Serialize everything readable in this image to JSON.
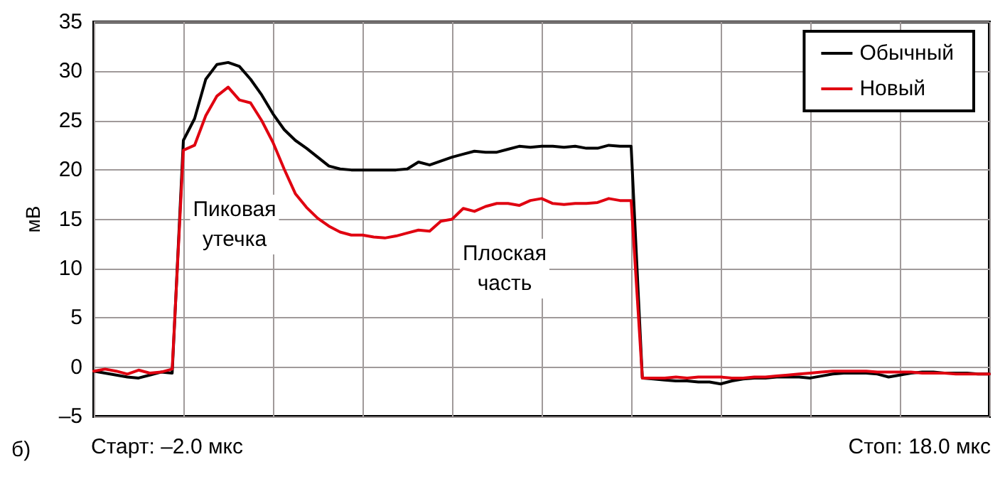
{
  "chart_data": {
    "type": "line",
    "ylabel": "мВ",
    "categories": [
      null,
      null,
      null,
      null,
      null,
      null,
      null,
      null,
      null,
      null,
      null,
      null,
      null,
      null,
      null,
      null,
      null,
      null,
      null,
      null,
      null,
      null,
      null,
      null,
      null,
      null,
      null,
      null,
      null,
      null,
      null,
      null,
      null,
      null,
      null,
      null,
      null,
      null,
      null,
      null,
      null,
      null,
      null,
      null,
      null,
      null,
      null,
      null,
      null,
      null,
      null,
      null,
      null,
      null,
      null,
      null,
      null,
      null,
      null,
      null,
      null,
      null,
      null,
      null,
      null,
      null,
      null,
      null,
      null,
      null,
      null,
      null,
      null,
      null,
      null,
      null,
      null,
      null,
      null,
      null,
      null
    ],
    "ylim": [
      -5,
      35
    ],
    "yticks": [
      {
        "value": -5,
        "label": "–5"
      },
      0,
      5,
      10,
      15,
      20,
      25,
      30,
      35
    ],
    "tick_labels": "y",
    "grid": true,
    "legend": "top right",
    "line_style": "solid",
    "series": [
      {
        "name": "Обычный",
        "color": "#000000",
        "values": [
          -0.4,
          -0.6,
          -0.8,
          -1.0,
          -1.1,
          -0.8,
          -0.5,
          -0.6,
          23,
          25.2,
          29.2,
          30.7,
          30.9,
          30.5,
          29.2,
          27.6,
          25.7,
          24.1,
          23.0,
          22.2,
          21.3,
          20.4,
          20.1,
          20,
          20,
          20,
          20,
          20,
          20.1,
          20.8,
          20.5,
          20.9,
          21.3,
          21.6,
          21.9,
          21.8,
          21.8,
          22.1,
          22.4,
          22.3,
          22.4,
          22.4,
          22.3,
          22.4,
          22.2,
          22.2,
          22.5,
          22.4,
          22.4,
          -1.1,
          -1.2,
          -1.3,
          -1.4,
          -1.4,
          -1.5,
          -1.5,
          -1.7,
          -1.4,
          -1.2,
          -1.1,
          -1.1,
          -1.0,
          -1.0,
          -1.0,
          -1.1,
          -0.9,
          -0.7,
          -0.6,
          -0.6,
          -0.6,
          -0.7,
          -1.0,
          -0.8,
          -0.6,
          -0.5,
          -0.5,
          -0.6,
          -0.6,
          -0.6,
          -0.7,
          -0.7
        ]
      },
      {
        "name": "Новый",
        "color": "#e00010",
        "values": [
          -0.4,
          -0.2,
          -0.4,
          -0.7,
          -0.3,
          -0.6,
          -0.5,
          -0.2,
          22,
          22.5,
          25.5,
          27.5,
          28.4,
          27.1,
          26.8,
          25,
          22.8,
          20.1,
          17.6,
          16.2,
          15.1,
          14.3,
          13.7,
          13.4,
          13.4,
          13.2,
          13.1,
          13.3,
          13.6,
          13.9,
          13.8,
          14.8,
          15.0,
          16.1,
          15.8,
          16.3,
          16.6,
          16.6,
          16.4,
          16.9,
          17.1,
          16.6,
          16.5,
          16.6,
          16.6,
          16.7,
          17.1,
          16.9,
          16.9,
          -1.1,
          -1.1,
          -1.1,
          -1.0,
          -1.1,
          -1.0,
          -1.0,
          -1.0,
          -1.1,
          -1.1,
          -1.0,
          -1.0,
          -0.9,
          -0.8,
          -0.7,
          -0.6,
          -0.5,
          -0.4,
          -0.4,
          -0.4,
          -0.4,
          -0.5,
          -0.5,
          -0.5,
          -0.5,
          -0.6,
          -0.6,
          -0.6,
          -0.7,
          -0.7,
          -0.7,
          -0.7
        ]
      }
    ],
    "annotations": [
      "Пиковая\nутечка",
      "Плоская\nчасть",
      "Старт: –2.0 мкс",
      "Стоп: 18.0 мкс",
      "б)"
    ]
  }
}
